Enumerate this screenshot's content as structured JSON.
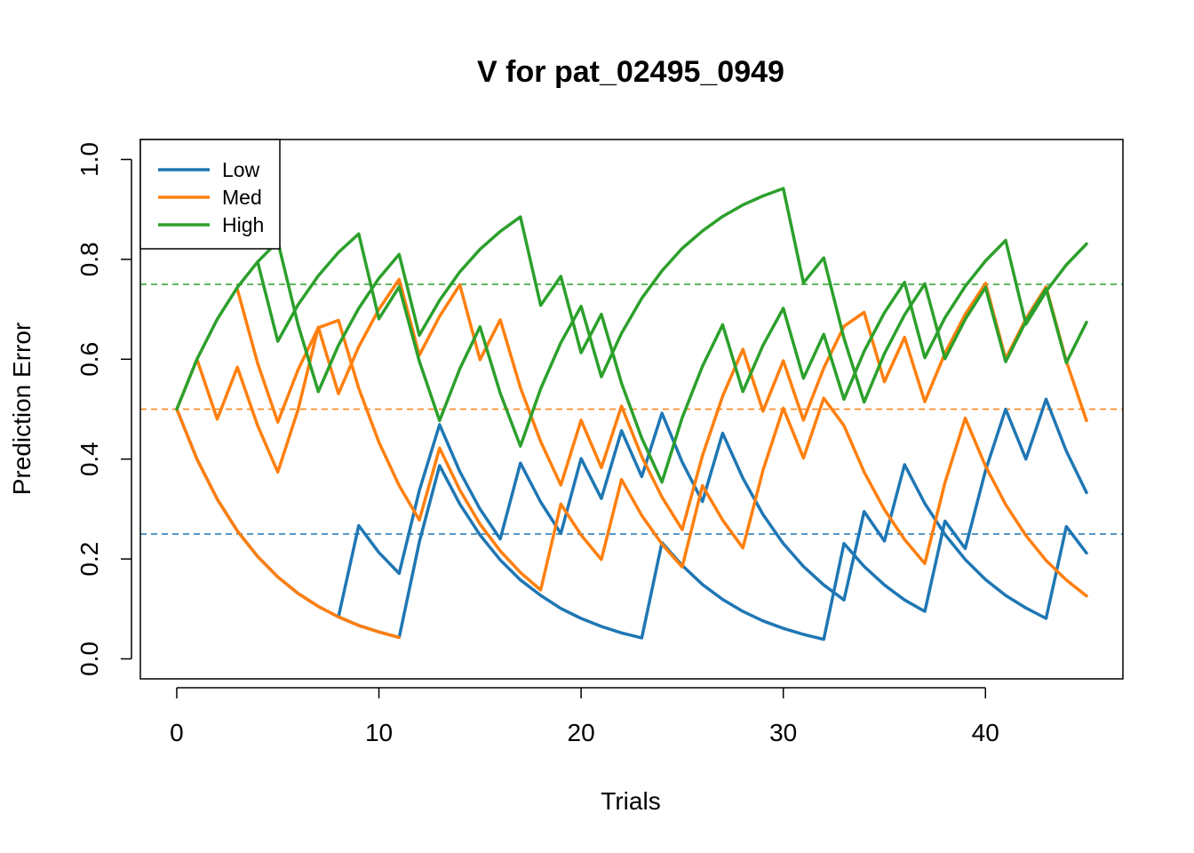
{
  "chart_data": {
    "type": "line",
    "title": "V for pat_02495_0949",
    "xlabel": "Trials",
    "ylabel": "Prediction Error",
    "xlim": [
      -1.8,
      46.8
    ],
    "ylim": [
      -0.04,
      1.04
    ],
    "x_ticks": [
      0,
      10,
      20,
      30,
      40
    ],
    "y_ticks": [
      0.0,
      0.2,
      0.4,
      0.6,
      0.8,
      1.0
    ],
    "x_tick_labels": [
      "0",
      "10",
      "20",
      "30",
      "40"
    ],
    "y_tick_labels": [
      "0.0",
      "0.2",
      "0.4",
      "0.6",
      "0.8",
      "1.0"
    ],
    "grid": false,
    "legend": {
      "position": "top-left",
      "entries": [
        "Low",
        "Med",
        "High"
      ]
    },
    "reference_lines": [
      {
        "y": 0.25,
        "color": "#1f77b4",
        "style": "dashed"
      },
      {
        "y": 0.5,
        "color": "#ff7f0e",
        "style": "dashed"
      },
      {
        "y": 0.75,
        "color": "#2ca02c",
        "style": "dashed"
      }
    ],
    "colors": {
      "Low": "#1f77b4",
      "Med": "#ff7f0e",
      "High": "#2ca02c"
    },
    "series": [
      {
        "name": "Low",
        "color": "#1f77b4",
        "points": [
          [
            0,
            0.5
          ],
          [
            1,
            0.4
          ],
          [
            2,
            0.32
          ],
          [
            3,
            0.256
          ],
          [
            4,
            0.205
          ],
          [
            5,
            0.164
          ],
          [
            6,
            0.131
          ],
          [
            7,
            0.105
          ],
          [
            8,
            0.084
          ],
          [
            9,
            0.267
          ],
          [
            10,
            0.213
          ],
          [
            11,
            0.171
          ],
          [
            12,
            0.337
          ],
          [
            13,
            0.469
          ],
          [
            14,
            0.375
          ],
          [
            15,
            0.3
          ],
          [
            16,
            0.24
          ],
          [
            17,
            0.392
          ],
          [
            18,
            0.314
          ],
          [
            19,
            0.251
          ],
          [
            20,
            0.401
          ],
          [
            21,
            0.321
          ],
          [
            22,
            0.457
          ],
          [
            23,
            0.365
          ],
          [
            24,
            0.492
          ],
          [
            25,
            0.394
          ],
          [
            26,
            0.315
          ],
          [
            27,
            0.452
          ],
          [
            28,
            0.362
          ],
          [
            29,
            0.289
          ],
          [
            30,
            0.231
          ],
          [
            31,
            0.185
          ],
          [
            32,
            0.148
          ],
          [
            33,
            0.118
          ],
          [
            34,
            0.295
          ],
          [
            35,
            0.236
          ],
          [
            36,
            0.389
          ],
          [
            37,
            0.311
          ],
          [
            38,
            0.249
          ],
          [
            39,
            0.199
          ],
          [
            40,
            0.159
          ],
          [
            41,
            0.127
          ],
          [
            42,
            0.102
          ],
          [
            43,
            0.081
          ],
          [
            44,
            0.265
          ],
          [
            45,
            0.212
          ]
        ]
      },
      {
        "name": "Low",
        "color": "#1f77b4",
        "points": [
          [
            8,
            0.084
          ],
          [
            9,
            0.067
          ],
          [
            10,
            0.054
          ],
          [
            11,
            0.043
          ],
          [
            12,
            0.234
          ],
          [
            13,
            0.387
          ],
          [
            14,
            0.31
          ],
          [
            15,
            0.248
          ],
          [
            16,
            0.198
          ],
          [
            17,
            0.158
          ],
          [
            18,
            0.127
          ],
          [
            19,
            0.101
          ],
          [
            20,
            0.081
          ],
          [
            21,
            0.065
          ],
          [
            22,
            0.052
          ],
          [
            23,
            0.042
          ],
          [
            24,
            0.233
          ],
          [
            25,
            0.187
          ],
          [
            26,
            0.149
          ],
          [
            27,
            0.119
          ],
          [
            28,
            0.095
          ],
          [
            29,
            0.076
          ],
          [
            30,
            0.061
          ],
          [
            31,
            0.049
          ],
          [
            32,
            0.039
          ],
          [
            33,
            0.231
          ],
          [
            34,
            0.185
          ],
          [
            35,
            0.148
          ],
          [
            36,
            0.118
          ],
          [
            37,
            0.095
          ],
          [
            38,
            0.276
          ],
          [
            39,
            0.221
          ],
          [
            40,
            0.377
          ],
          [
            41,
            0.5
          ],
          [
            42,
            0.4
          ],
          [
            43,
            0.52
          ],
          [
            44,
            0.416
          ],
          [
            45,
            0.333
          ]
        ]
      },
      {
        "name": "Med",
        "color": "#ff7f0e",
        "points": [
          [
            0,
            0.5
          ],
          [
            1,
            0.6
          ],
          [
            2,
            0.48
          ],
          [
            3,
            0.584
          ],
          [
            4,
            0.467
          ],
          [
            5,
            0.374
          ],
          [
            6,
            0.499
          ],
          [
            7,
            0.664
          ],
          [
            8,
            0.531
          ],
          [
            9,
            0.625
          ],
          [
            10,
            0.7
          ],
          [
            11,
            0.76
          ],
          [
            12,
            0.608
          ],
          [
            13,
            0.686
          ],
          [
            14,
            0.749
          ],
          [
            15,
            0.599
          ],
          [
            16,
            0.679
          ],
          [
            17,
            0.543
          ],
          [
            18,
            0.435
          ],
          [
            19,
            0.348
          ],
          [
            20,
            0.478
          ],
          [
            21,
            0.383
          ],
          [
            22,
            0.506
          ],
          [
            23,
            0.405
          ],
          [
            24,
            0.324
          ],
          [
            25,
            0.259
          ],
          [
            26,
            0.407
          ],
          [
            27,
            0.526
          ],
          [
            28,
            0.62
          ],
          [
            29,
            0.496
          ],
          [
            30,
            0.597
          ],
          [
            31,
            0.478
          ],
          [
            32,
            0.582
          ],
          [
            33,
            0.666
          ],
          [
            34,
            0.694
          ],
          [
            35,
            0.555
          ],
          [
            36,
            0.644
          ],
          [
            37,
            0.515
          ],
          [
            38,
            0.612
          ],
          [
            39,
            0.69
          ],
          [
            40,
            0.752
          ],
          [
            41,
            0.601
          ],
          [
            42,
            0.681
          ],
          [
            43,
            0.745
          ],
          [
            44,
            0.596
          ],
          [
            45,
            0.477
          ]
        ]
      },
      {
        "name": "Med",
        "color": "#ff7f0e",
        "points": [
          [
            0,
            0.5
          ],
          [
            1,
            0.4
          ],
          [
            2,
            0.32
          ],
          [
            3,
            0.256
          ],
          [
            4,
            0.205
          ],
          [
            5,
            0.164
          ],
          [
            6,
            0.131
          ],
          [
            7,
            0.105
          ],
          [
            8,
            0.084
          ],
          [
            9,
            0.067
          ],
          [
            10,
            0.054
          ],
          [
            11,
            0.043
          ]
        ]
      },
      {
        "name": "Med",
        "color": "#ff7f0e",
        "points": [
          [
            3,
            0.74
          ],
          [
            4,
            0.592
          ],
          [
            5,
            0.474
          ],
          [
            6,
            0.579
          ],
          [
            7,
            0.663
          ],
          [
            8,
            0.678
          ],
          [
            9,
            0.542
          ],
          [
            10,
            0.434
          ],
          [
            11,
            0.347
          ],
          [
            12,
            0.278
          ],
          [
            13,
            0.422
          ],
          [
            14,
            0.338
          ],
          [
            15,
            0.27
          ],
          [
            16,
            0.216
          ],
          [
            17,
            0.173
          ],
          [
            18,
            0.138
          ],
          [
            19,
            0.31
          ],
          [
            20,
            0.248
          ],
          [
            21,
            0.199
          ],
          [
            22,
            0.359
          ],
          [
            23,
            0.287
          ],
          [
            24,
            0.23
          ],
          [
            25,
            0.184
          ],
          [
            26,
            0.347
          ],
          [
            27,
            0.278
          ],
          [
            28,
            0.222
          ],
          [
            29,
            0.378
          ],
          [
            30,
            0.502
          ],
          [
            31,
            0.402
          ],
          [
            32,
            0.522
          ],
          [
            33,
            0.467
          ],
          [
            34,
            0.374
          ],
          [
            35,
            0.299
          ],
          [
            36,
            0.239
          ],
          [
            37,
            0.191
          ],
          [
            38,
            0.353
          ],
          [
            39,
            0.482
          ],
          [
            40,
            0.386
          ],
          [
            41,
            0.309
          ],
          [
            42,
            0.247
          ],
          [
            43,
            0.197
          ],
          [
            44,
            0.158
          ],
          [
            45,
            0.126
          ]
        ]
      },
      {
        "name": "High",
        "color": "#2ca02c",
        "points": [
          [
            0,
            0.5
          ],
          [
            1,
            0.6
          ],
          [
            2,
            0.68
          ],
          [
            3,
            0.744
          ],
          [
            4,
            0.795
          ],
          [
            5,
            0.836
          ],
          [
            6,
            0.669
          ],
          [
            7,
            0.535
          ],
          [
            8,
            0.628
          ],
          [
            9,
            0.702
          ],
          [
            10,
            0.762
          ],
          [
            11,
            0.81
          ],
          [
            12,
            0.648
          ],
          [
            13,
            0.718
          ],
          [
            14,
            0.775
          ],
          [
            15,
            0.82
          ],
          [
            16,
            0.856
          ],
          [
            17,
            0.885
          ],
          [
            18,
            0.708
          ],
          [
            19,
            0.766
          ],
          [
            20,
            0.613
          ],
          [
            21,
            0.69
          ],
          [
            22,
            0.552
          ],
          [
            23,
            0.442
          ],
          [
            24,
            0.354
          ],
          [
            25,
            0.483
          ],
          [
            26,
            0.586
          ],
          [
            27,
            0.669
          ],
          [
            28,
            0.535
          ],
          [
            29,
            0.628
          ],
          [
            30,
            0.702
          ],
          [
            31,
            0.562
          ],
          [
            32,
            0.65
          ],
          [
            33,
            0.52
          ],
          [
            34,
            0.616
          ],
          [
            35,
            0.693
          ],
          [
            36,
            0.754
          ],
          [
            37,
            0.603
          ],
          [
            38,
            0.683
          ],
          [
            39,
            0.746
          ],
          [
            40,
            0.797
          ],
          [
            41,
            0.838
          ],
          [
            42,
            0.67
          ],
          [
            43,
            0.736
          ],
          [
            44,
            0.789
          ],
          [
            45,
            0.831
          ]
        ]
      },
      {
        "name": "High",
        "color": "#2ca02c",
        "points": [
          [
            4,
            0.795
          ],
          [
            5,
            0.636
          ],
          [
            6,
            0.709
          ],
          [
            7,
            0.767
          ],
          [
            8,
            0.814
          ],
          [
            9,
            0.851
          ],
          [
            10,
            0.681
          ],
          [
            11,
            0.745
          ],
          [
            12,
            0.596
          ],
          [
            13,
            0.477
          ],
          [
            14,
            0.581
          ],
          [
            15,
            0.665
          ],
          [
            16,
            0.532
          ],
          [
            17,
            0.426
          ],
          [
            18,
            0.541
          ],
          [
            19,
            0.633
          ],
          [
            20,
            0.706
          ],
          [
            21,
            0.565
          ],
          [
            22,
            0.652
          ],
          [
            23,
            0.722
          ],
          [
            24,
            0.777
          ],
          [
            25,
            0.822
          ],
          [
            26,
            0.857
          ],
          [
            27,
            0.886
          ],
          [
            28,
            0.909
          ],
          [
            29,
            0.927
          ],
          [
            30,
            0.942
          ],
          [
            31,
            0.753
          ],
          [
            32,
            0.803
          ],
          [
            33,
            0.642
          ],
          [
            34,
            0.514
          ],
          [
            35,
            0.611
          ],
          [
            36,
            0.689
          ],
          [
            37,
            0.751
          ],
          [
            38,
            0.601
          ],
          [
            39,
            0.68
          ],
          [
            40,
            0.744
          ],
          [
            41,
            0.595
          ],
          [
            42,
            0.676
          ],
          [
            43,
            0.741
          ],
          [
            44,
            0.593
          ],
          [
            45,
            0.674
          ]
        ]
      }
    ]
  }
}
